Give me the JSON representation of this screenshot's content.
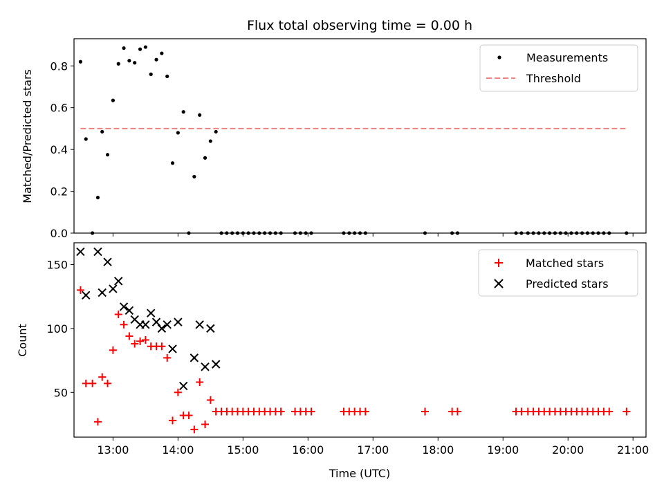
{
  "chart_data": [
    {
      "type": "scatter",
      "title": "Flux total observing time = 0.00 h",
      "xlabel": "",
      "ylabel": "Matched/Predicted stars",
      "xlim": [
        "12:24",
        "21:12"
      ],
      "ylim": [
        0,
        0.93
      ],
      "y_ticks": [
        "0.0",
        "0.2",
        "0.4",
        "0.6",
        "0.8"
      ],
      "legend_position": "top-right",
      "colors": {
        "measurements": "#000000",
        "threshold": "#f08080"
      },
      "series": [
        {
          "name": "Measurements",
          "kind": "points",
          "points": [
            [
              "12:30",
              0.82
            ],
            [
              "12:35",
              0.45
            ],
            [
              "12:41",
              0.0
            ],
            [
              "12:46",
              0.17
            ],
            [
              "12:50",
              0.485
            ],
            [
              "12:55",
              0.375
            ],
            [
              "13:00",
              0.635
            ],
            [
              "13:05",
              0.81
            ],
            [
              "13:10",
              0.885
            ],
            [
              "13:15",
              0.825
            ],
            [
              "13:20",
              0.815
            ],
            [
              "13:25",
              0.88
            ],
            [
              "13:30",
              0.89
            ],
            [
              "13:35",
              0.76
            ],
            [
              "13:40",
              0.83
            ],
            [
              "13:45",
              0.86
            ],
            [
              "13:50",
              0.75
            ],
            [
              "13:55",
              0.335
            ],
            [
              "14:00",
              0.48
            ],
            [
              "14:05",
              0.58
            ],
            [
              "14:10",
              0.0
            ],
            [
              "14:15",
              0.27
            ],
            [
              "14:20",
              0.565
            ],
            [
              "14:25",
              0.36
            ],
            [
              "14:30",
              0.44
            ],
            [
              "14:35",
              0.485
            ],
            [
              "14:40",
              0.0
            ],
            [
              "14:45",
              0.0
            ],
            [
              "14:50",
              0.0
            ],
            [
              "14:55",
              0.0
            ],
            [
              "15:00",
              0.0
            ],
            [
              "15:05",
              0.0
            ],
            [
              "15:10",
              0.0
            ],
            [
              "15:15",
              0.0
            ],
            [
              "15:20",
              0.0
            ],
            [
              "15:25",
              0.0
            ],
            [
              "15:30",
              0.0
            ],
            [
              "15:35",
              0.0
            ],
            [
              "15:48",
              0.0
            ],
            [
              "15:53",
              0.0
            ],
            [
              "15:58",
              0.0
            ],
            [
              "16:03",
              0.0
            ],
            [
              "16:33",
              0.0
            ],
            [
              "16:38",
              0.0
            ],
            [
              "16:43",
              0.0
            ],
            [
              "16:48",
              0.0
            ],
            [
              "16:53",
              0.0
            ],
            [
              "17:48",
              0.0
            ],
            [
              "18:13",
              0.0
            ],
            [
              "18:18",
              0.0
            ],
            [
              "19:12",
              0.0
            ],
            [
              "19:17",
              0.0
            ],
            [
              "19:23",
              0.0
            ],
            [
              "19:28",
              0.0
            ],
            [
              "19:33",
              0.0
            ],
            [
              "19:38",
              0.0
            ],
            [
              "19:43",
              0.0
            ],
            [
              "19:48",
              0.0
            ],
            [
              "19:53",
              0.0
            ],
            [
              "19:58",
              0.0
            ],
            [
              "20:03",
              0.0
            ],
            [
              "20:08",
              0.0
            ],
            [
              "20:13",
              0.0
            ],
            [
              "20:18",
              0.0
            ],
            [
              "20:23",
              0.0
            ],
            [
              "20:28",
              0.0
            ],
            [
              "20:33",
              0.0
            ],
            [
              "20:38",
              0.0
            ],
            [
              "20:54",
              0.0
            ]
          ]
        },
        {
          "name": "Threshold",
          "kind": "dashed-line",
          "points": [
            [
              "12:30",
              0.5
            ],
            [
              "20:54",
              0.5
            ]
          ]
        }
      ]
    },
    {
      "type": "scatter",
      "title": "",
      "xlabel": "Time (UTC)",
      "ylabel": "Count",
      "xlim": [
        "12:24",
        "21:12"
      ],
      "ylim": [
        15,
        167
      ],
      "y_ticks": [
        "50",
        "100",
        "150"
      ],
      "x_ticks": [
        "13:00",
        "14:00",
        "15:00",
        "16:00",
        "17:00",
        "18:00",
        "19:00",
        "20:00",
        "21:00"
      ],
      "legend_position": "top-right",
      "colors": {
        "matched": "#ff0000",
        "predicted": "#000000"
      },
      "series": [
        {
          "name": "Matched stars",
          "marker": "plus",
          "points": [
            [
              "12:30",
              130
            ],
            [
              "12:35",
              57
            ],
            [
              "12:41",
              57
            ],
            [
              "12:46",
              27
            ],
            [
              "12:50",
              62
            ],
            [
              "12:55",
              57
            ],
            [
              "13:00",
              83
            ],
            [
              "13:05",
              111
            ],
            [
              "13:10",
              103
            ],
            [
              "13:15",
              94
            ],
            [
              "13:20",
              88
            ],
            [
              "13:25",
              90
            ],
            [
              "13:30",
              91
            ],
            [
              "13:35",
              86
            ],
            [
              "13:40",
              86
            ],
            [
              "13:45",
              86
            ],
            [
              "13:50",
              77
            ],
            [
              "13:55",
              28
            ],
            [
              "14:00",
              50
            ],
            [
              "14:05",
              32
            ],
            [
              "14:10",
              32
            ],
            [
              "14:15",
              21
            ],
            [
              "14:20",
              58
            ],
            [
              "14:25",
              25
            ],
            [
              "14:30",
              44
            ],
            [
              "14:35",
              35
            ],
            [
              "14:40",
              35
            ],
            [
              "14:45",
              35
            ],
            [
              "14:50",
              35
            ],
            [
              "14:55",
              35
            ],
            [
              "15:00",
              35
            ],
            [
              "15:05",
              35
            ],
            [
              "15:10",
              35
            ],
            [
              "15:15",
              35
            ],
            [
              "15:20",
              35
            ],
            [
              "15:25",
              35
            ],
            [
              "15:30",
              35
            ],
            [
              "15:35",
              35
            ],
            [
              "15:48",
              35
            ],
            [
              "15:53",
              35
            ],
            [
              "15:58",
              35
            ],
            [
              "16:03",
              35
            ],
            [
              "16:33",
              35
            ],
            [
              "16:38",
              35
            ],
            [
              "16:43",
              35
            ],
            [
              "16:48",
              35
            ],
            [
              "16:53",
              35
            ],
            [
              "17:48",
              35
            ],
            [
              "18:13",
              35
            ],
            [
              "18:18",
              35
            ],
            [
              "19:12",
              35
            ],
            [
              "19:17",
              35
            ],
            [
              "19:23",
              35
            ],
            [
              "19:28",
              35
            ],
            [
              "19:33",
              35
            ],
            [
              "19:38",
              35
            ],
            [
              "19:43",
              35
            ],
            [
              "19:48",
              35
            ],
            [
              "19:53",
              35
            ],
            [
              "19:58",
              35
            ],
            [
              "20:03",
              35
            ],
            [
              "20:08",
              35
            ],
            [
              "20:13",
              35
            ],
            [
              "20:18",
              35
            ],
            [
              "20:23",
              35
            ],
            [
              "20:28",
              35
            ],
            [
              "20:33",
              35
            ],
            [
              "20:38",
              35
            ],
            [
              "20:54",
              35
            ]
          ]
        },
        {
          "name": "Predicted stars",
          "marker": "x",
          "points": [
            [
              "12:30",
              160
            ],
            [
              "12:35",
              126
            ],
            [
              "12:46",
              160
            ],
            [
              "12:50",
              128
            ],
            [
              "12:55",
              152
            ],
            [
              "13:00",
              131
            ],
            [
              "13:05",
              137
            ],
            [
              "13:10",
              117
            ],
            [
              "13:15",
              114
            ],
            [
              "13:20",
              107
            ],
            [
              "13:25",
              103
            ],
            [
              "13:30",
              103
            ],
            [
              "13:35",
              112
            ],
            [
              "13:40",
              105
            ],
            [
              "13:45",
              100
            ],
            [
              "13:50",
              103
            ],
            [
              "13:55",
              84
            ],
            [
              "14:00",
              105
            ],
            [
              "14:05",
              55
            ],
            [
              "14:15",
              77
            ],
            [
              "14:20",
              103
            ],
            [
              "14:25",
              70
            ],
            [
              "14:30",
              100
            ],
            [
              "14:35",
              72
            ]
          ]
        }
      ]
    }
  ]
}
